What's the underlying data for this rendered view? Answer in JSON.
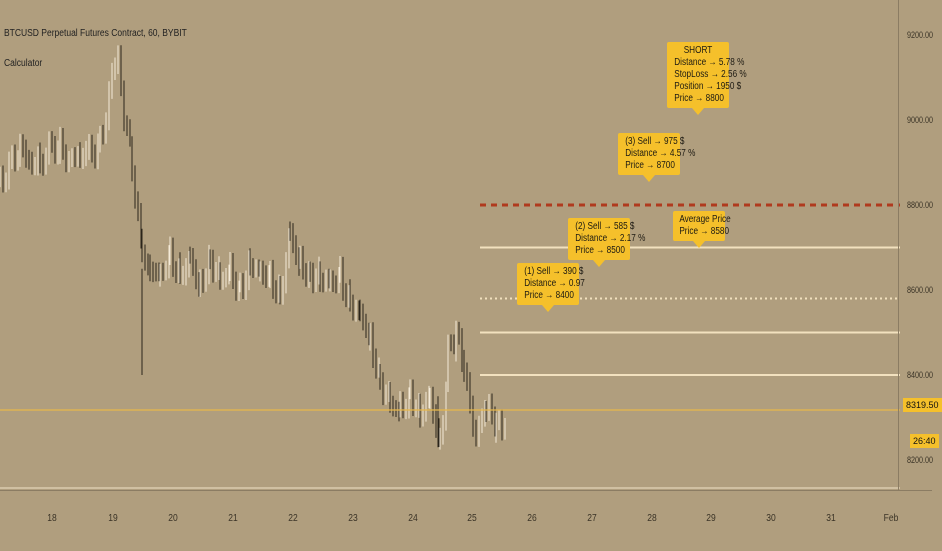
{
  "header": {
    "title": "BTCUSD Perpetual Futures Contract, 60, BYBIT",
    "indicator": "Calculator"
  },
  "colors": {
    "background": "#b09e7e",
    "label_fill": "#f5c02b",
    "stop_line": "#b03a1e",
    "level_line": "#f2e1bf",
    "current_price_line": "#e8b84a"
  },
  "chart_data": {
    "type": "candlestick",
    "title": "BTCUSD Perpetual Futures Contract, 60, BYBIT",
    "x_ticks": [
      "18",
      "19",
      "20",
      "21",
      "22",
      "23",
      "24",
      "25",
      "26",
      "27",
      "28",
      "29",
      "30",
      "31",
      "Feb"
    ],
    "y_ticks": [
      "9200.00",
      "9000.00",
      "8800.00",
      "8600.00",
      "8400.00",
      "8200.00"
    ],
    "ylim": [
      8130,
      9260
    ],
    "current_price": "8319.50",
    "countdown": "26:40",
    "levels": [
      {
        "name": "Entry 1",
        "price": 8400,
        "style": "solid"
      },
      {
        "name": "Average Price",
        "price": 8580,
        "style": "dotted"
      },
      {
        "name": "Entry 2",
        "price": 8500,
        "style": "solid"
      },
      {
        "name": "Entry 3",
        "price": 8700,
        "style": "solid"
      },
      {
        "name": "Stop Loss",
        "price": 8800,
        "style": "dashed"
      }
    ],
    "boxes": [
      {
        "lines": [
          "(1) Sell → 390 $",
          "Distance → 0.97",
          "Price → 8400"
        ]
      },
      {
        "lines": [
          "(2) Sell → 585 $",
          "Distance → 2.17 %",
          "Price → 8500"
        ]
      },
      {
        "lines": [
          "(3) Sell → 975 $",
          "Distance → 4.57 %",
          "Price → 8700"
        ]
      },
      {
        "lines": [
          "SHORT",
          "Distance → 5.78 %",
          "StopLoss → 2.56 %",
          "Position → 1950 $",
          "Price → 8800"
        ]
      },
      {
        "lines": [
          "Average Price",
          "Price → 8580"
        ]
      }
    ]
  }
}
